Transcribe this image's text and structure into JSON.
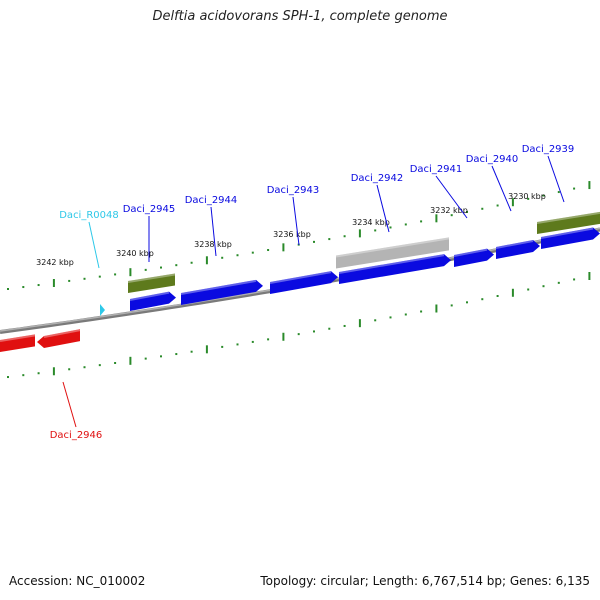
{
  "title": "Delftia acidovorans SPH-1, complete genome",
  "accession": "Accession: NC_010002",
  "summary": "Topology: circular; Length: 6,767,514 bp; Genes: 6,135",
  "colors": {
    "forward_gene": "#0a0ae0",
    "reverse_gene": "#e01010",
    "rna_feature": "#2ec8e8",
    "pseudo_gene": "#b4b4b4",
    "protein_block": "#5e7a1c",
    "backbone": "#888888",
    "ticks": "#2a8a2a"
  },
  "ticks": [
    {
      "label": "3242 kbp"
    },
    {
      "label": "3240 kbp"
    },
    {
      "label": "3238 kbp"
    },
    {
      "label": "3236 kbp"
    },
    {
      "label": "3234 kbp"
    },
    {
      "label": "3232 kbp"
    },
    {
      "label": "3230 kbp"
    }
  ],
  "genes": [
    {
      "name": "Daci_R0048",
      "strand": "forward",
      "type": "rna"
    },
    {
      "name": "Daci_2945",
      "strand": "forward",
      "type": "cds"
    },
    {
      "name": "Daci_2944",
      "strand": "forward",
      "type": "cds"
    },
    {
      "name": "Daci_2943",
      "strand": "forward",
      "type": "cds"
    },
    {
      "name": "Daci_2942",
      "strand": "forward",
      "type": "pseudo"
    },
    {
      "name": "Daci_2941",
      "strand": "forward",
      "type": "cds"
    },
    {
      "name": "Daci_2940",
      "strand": "forward",
      "type": "cds"
    },
    {
      "name": "Daci_2939",
      "strand": "forward",
      "type": "cds"
    },
    {
      "name": "Daci_2946",
      "strand": "reverse",
      "type": "cds"
    }
  ]
}
